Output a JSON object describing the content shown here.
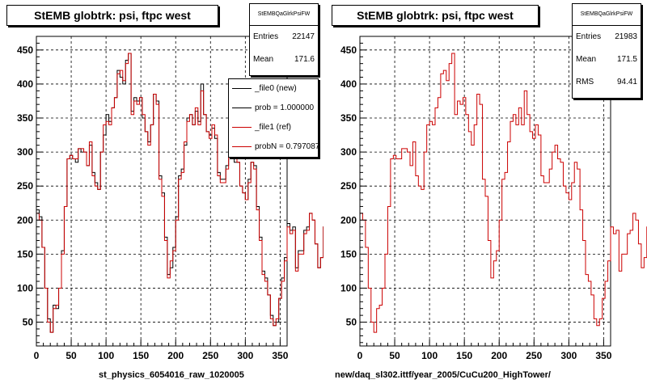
{
  "colors": {
    "new": "#000000",
    "ref": "#cc0000",
    "frame": "#000000"
  },
  "left_panel": {
    "title": "StEMB globtrk: psi, ftpc west",
    "stats": {
      "header": "StEMBQaGlrkPsiFW",
      "rows": [
        {
          "label": "Entries",
          "value": "22147"
        },
        {
          "label": "Mean",
          "value": "171.6"
        }
      ]
    },
    "legend": [
      {
        "label": "_file0 (new)",
        "color": "#000000"
      },
      {
        "label": "prob = 1.000000",
        "color": "#000000"
      },
      {
        "label": "_file1 (ref)",
        "color": "#cc0000"
      },
      {
        "label": "probN = 0.797087",
        "color": "#cc0000"
      }
    ],
    "footer": "st_physics_6054016_raw_1020005"
  },
  "right_panel": {
    "title": "StEMB globtrk: psi, ftpc west",
    "stats": {
      "header": "StEMBQaGlrkPsiFW",
      "rows": [
        {
          "label": "Entries",
          "value": "21983"
        },
        {
          "label": "Mean",
          "value": "171.5"
        },
        {
          "label": "RMS",
          "value": "94.41"
        }
      ]
    },
    "footer": "new/daq_sl302.ittf/year_2005/CuCu200_HighTower/"
  },
  "chart_data": [
    {
      "type": "line",
      "title": "StEMB globtrk: psi, ftpc west",
      "xlim": [
        0,
        360
      ],
      "ylim": [
        15,
        470
      ],
      "x_ticks": [
        0,
        50,
        100,
        150,
        200,
        250,
        300,
        350
      ],
      "y_ticks": [
        50,
        100,
        150,
        200,
        250,
        300,
        350,
        400,
        450
      ],
      "grid": true,
      "bin_width": 4,
      "series": [
        {
          "name": "_file0 (new)",
          "color": "#000000",
          "values": [
            215,
            205,
            160,
            100,
            55,
            35,
            75,
            70,
            100,
            155,
            220,
            290,
            295,
            290,
            285,
            305,
            300,
            300,
            280,
            310,
            270,
            255,
            245,
            300,
            325,
            355,
            345,
            365,
            380,
            420,
            410,
            400,
            435,
            445,
            360,
            380,
            375,
            380,
            350,
            330,
            315,
            340,
            385,
            375,
            265,
            240,
            175,
            120,
            130,
            160,
            205,
            265,
            275,
            310,
            350,
            355,
            340,
            360,
            345,
            400,
            355,
            330,
            325,
            335,
            320,
            270,
            260,
            260,
            280,
            305,
            300,
            285,
            285,
            250,
            240,
            230,
            260,
            285,
            280,
            220,
            175,
            125,
            115,
            90,
            60,
            45,
            50,
            85,
            115,
            145,
            195,
            185,
            190,
            130,
            155,
            155,
            185,
            190,
            210,
            200,
            165,
            130,
            145,
            190,
            180,
            205,
            230,
            255,
            235,
            240
          ]
        },
        {
          "name": "_file1 (ref)",
          "color": "#cc0000",
          "values": [
            210,
            200,
            160,
            100,
            50,
            35,
            70,
            75,
            100,
            150,
            220,
            290,
            295,
            290,
            290,
            305,
            305,
            300,
            280,
            315,
            265,
            250,
            245,
            300,
            340,
            345,
            340,
            365,
            380,
            415,
            420,
            405,
            430,
            445,
            355,
            375,
            370,
            380,
            355,
            330,
            310,
            340,
            385,
            370,
            260,
            235,
            170,
            115,
            140,
            155,
            200,
            260,
            270,
            315,
            345,
            355,
            340,
            365,
            340,
            390,
            355,
            330,
            320,
            340,
            325,
            265,
            255,
            255,
            275,
            300,
            310,
            290,
            285,
            250,
            240,
            230,
            255,
            285,
            275,
            215,
            170,
            120,
            110,
            90,
            55,
            45,
            55,
            85,
            110,
            140,
            190,
            180,
            185,
            125,
            150,
            150,
            180,
            185,
            210,
            200,
            165,
            130,
            145,
            190,
            180,
            200,
            230,
            250,
            235,
            240
          ]
        }
      ]
    },
    {
      "type": "line",
      "title": "StEMB globtrk: psi, ftpc west",
      "xlim": [
        0,
        360
      ],
      "ylim": [
        15,
        470
      ],
      "x_ticks": [
        0,
        50,
        100,
        150,
        200,
        250,
        300,
        350
      ],
      "y_ticks": [
        50,
        100,
        150,
        200,
        250,
        300,
        350,
        400,
        450
      ],
      "grid": true,
      "bin_width": 4,
      "series": [
        {
          "name": "_file1 (ref)",
          "color": "#cc0000",
          "values": [
            210,
            200,
            160,
            100,
            50,
            35,
            70,
            75,
            100,
            150,
            220,
            290,
            295,
            290,
            290,
            305,
            305,
            300,
            280,
            315,
            265,
            250,
            245,
            300,
            340,
            345,
            340,
            365,
            380,
            415,
            420,
            405,
            430,
            445,
            355,
            375,
            370,
            380,
            355,
            330,
            310,
            340,
            385,
            370,
            260,
            235,
            170,
            115,
            140,
            155,
            200,
            260,
            270,
            315,
            345,
            355,
            340,
            365,
            340,
            390,
            355,
            330,
            320,
            340,
            325,
            265,
            255,
            255,
            275,
            300,
            310,
            290,
            285,
            250,
            240,
            230,
            255,
            285,
            275,
            215,
            170,
            120,
            110,
            90,
            55,
            45,
            55,
            85,
            110,
            140,
            190,
            180,
            185,
            125,
            150,
            150,
            180,
            185,
            210,
            200,
            165,
            130,
            145,
            190,
            180,
            200,
            230,
            250,
            235,
            240
          ]
        }
      ]
    }
  ]
}
